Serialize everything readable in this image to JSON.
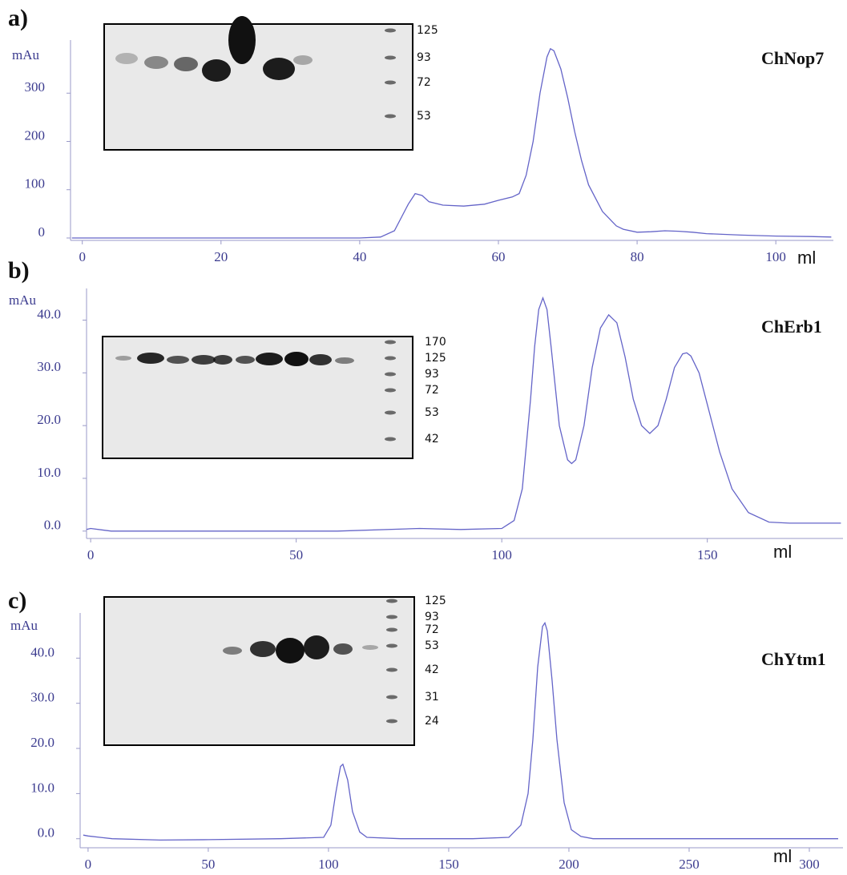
{
  "chart_data": [
    {
      "type": "line",
      "panel_label": "a)",
      "title": "ChNop7",
      "ylabel": "mAu",
      "xlabel": "ml",
      "color": "#6464c8",
      "x": [
        -1.5,
        0,
        10,
        20,
        30,
        40,
        43,
        45,
        47,
        48,
        49,
        50,
        52,
        55,
        58,
        60,
        62,
        63,
        64,
        65,
        66,
        67,
        67.5,
        68,
        69,
        70,
        71,
        72,
        73,
        75,
        77,
        78,
        80,
        82,
        84,
        86,
        88,
        90,
        95,
        100,
        105,
        108
      ],
      "values": [
        0,
        0,
        0,
        0,
        0,
        0,
        2,
        15,
        70,
        92,
        88,
        75,
        68,
        66,
        70,
        78,
        85,
        92,
        130,
        200,
        300,
        375,
        392,
        388,
        350,
        290,
        220,
        160,
        110,
        55,
        25,
        18,
        12,
        13,
        15,
        14,
        12,
        9,
        6,
        4,
        3,
        2
      ],
      "xlim": [
        -1.7,
        108.3
      ],
      "ylim": [
        -5,
        410
      ],
      "xticks": [
        0,
        20,
        40,
        60,
        80,
        100
      ],
      "yticks": [
        0,
        100,
        200,
        300
      ],
      "gel_markers": [
        "125",
        "93",
        "72",
        "53"
      ]
    },
    {
      "type": "line",
      "panel_label": "b)",
      "title": "ChErb1",
      "ylabel": "mAu",
      "xlabel": "ml",
      "color": "#6464c8",
      "x": [
        -1,
        0,
        5,
        20,
        40,
        60,
        80,
        90,
        100,
        103,
        105,
        107,
        108,
        109,
        110,
        111,
        112,
        114,
        116,
        117,
        118,
        120,
        122,
        124,
        126,
        128,
        130,
        132,
        134,
        136,
        138,
        140,
        142,
        144,
        145,
        146,
        148,
        150,
        153,
        156,
        160,
        165,
        170,
        182.5
      ],
      "values": [
        0.3,
        0.5,
        0,
        0,
        0,
        0,
        0.5,
        0.3,
        0.5,
        2,
        8,
        25,
        35,
        42,
        44.2,
        42,
        35,
        20,
        13.5,
        12.8,
        13.5,
        20,
        31,
        38.5,
        41,
        39.5,
        33,
        25,
        20,
        18.5,
        20,
        25,
        31,
        33.6,
        33.8,
        33.2,
        30,
        24,
        15,
        8,
        3.5,
        1.7,
        1.5,
        1.5
      ],
      "xlim": [
        -1,
        183
      ],
      "ylim": [
        -1.4,
        46
      ],
      "xticks": [
        0,
        50,
        100,
        150
      ],
      "yticks": [
        {
          "value": 0,
          "label": "0.0"
        },
        {
          "value": 10,
          "label": "10.0"
        },
        {
          "value": 20,
          "label": "20.0"
        },
        {
          "value": 30,
          "label": "30.0"
        },
        {
          "value": 40,
          "label": "40.0"
        }
      ],
      "gel_markers": [
        "170",
        "125",
        "93",
        "72",
        "53",
        "42"
      ]
    },
    {
      "type": "line",
      "panel_label": "c)",
      "title": "ChYtm1",
      "ylabel": "mAu",
      "xlabel": "ml",
      "color": "#6464c8",
      "x": [
        -2,
        0,
        10,
        30,
        50,
        80,
        98,
        101,
        103,
        105,
        106,
        108,
        110,
        113,
        116,
        130,
        160,
        175,
        180,
        183,
        185,
        187,
        189,
        190,
        191,
        193,
        195,
        198,
        201,
        205,
        210,
        230,
        260,
        300,
        312
      ],
      "values": [
        0.8,
        0.6,
        0,
        -0.3,
        -0.2,
        0,
        0.3,
        3,
        10,
        16,
        16.5,
        13,
        6,
        1.5,
        0.3,
        0,
        0,
        0.3,
        3,
        10,
        22,
        38,
        47,
        47.8,
        46,
        35,
        22,
        8,
        2,
        0.5,
        0,
        0,
        0,
        0,
        0
      ],
      "xlim": [
        -3.3,
        314
      ],
      "ylim": [
        -2,
        50
      ],
      "xticks": [
        0,
        50,
        100,
        150,
        200,
        250,
        300
      ],
      "yticks": [
        {
          "value": 0,
          "label": "0.0"
        },
        {
          "value": 10,
          "label": "10.0"
        },
        {
          "value": 20,
          "label": "20.0"
        },
        {
          "value": 30,
          "label": "30.0"
        },
        {
          "value": 40,
          "label": "40.0"
        }
      ],
      "gel_markers": [
        "125",
        "93",
        "72",
        "53",
        "42",
        "31",
        "24"
      ]
    }
  ]
}
